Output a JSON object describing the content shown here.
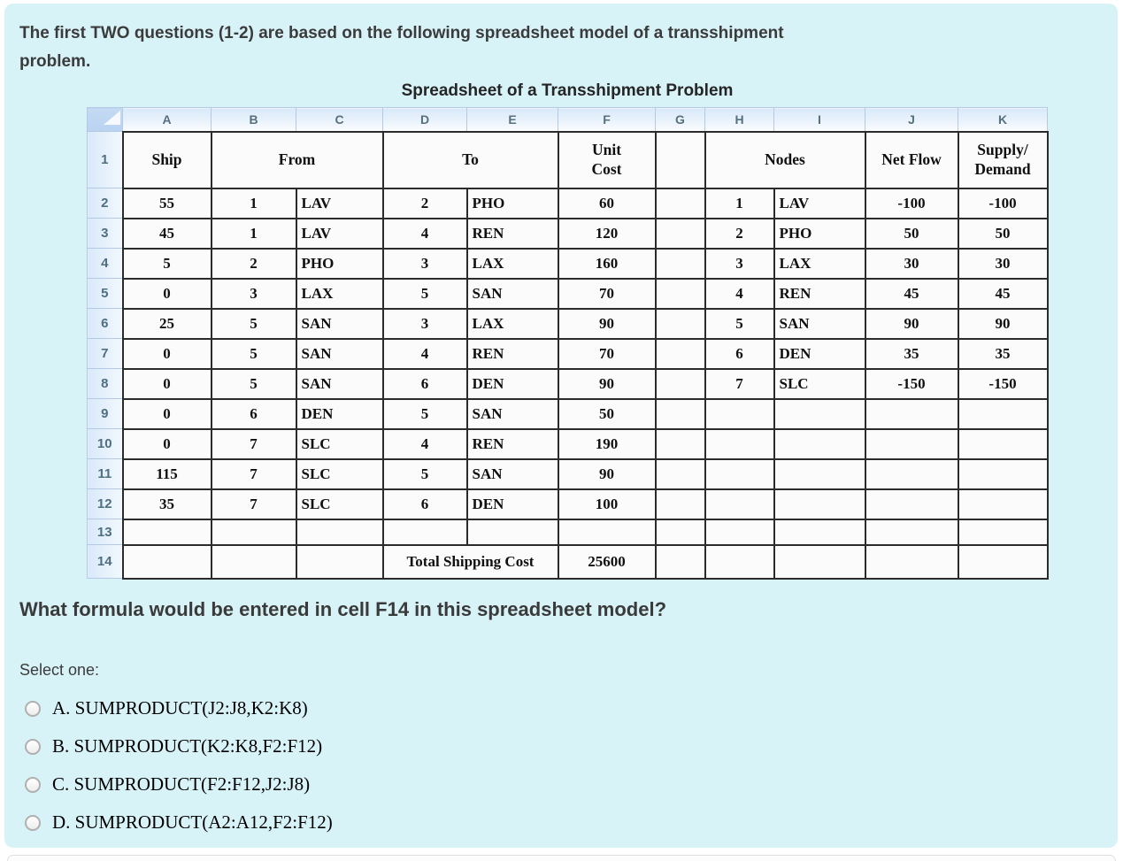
{
  "page": {
    "instruction_lines": [
      "The first TWO questions (1-2) are based on the following spreadsheet model of a transshipment",
      "problem."
    ],
    "question": "What formula would be entered in cell F14 in this spreadsheet model?",
    "select_label": "Select one:"
  },
  "options": [
    {
      "label": "A. SUMPRODUCT(J2:J8,K2:K8)"
    },
    {
      "label": "B. SUMPRODUCT(K2:K8,F2:F12)"
    },
    {
      "label": "C. SUMPRODUCT(F2:F12,J2:J8)"
    },
    {
      "label": "D. SUMPRODUCT(A2:A12,F2:F12)"
    }
  ],
  "spreadsheet": {
    "title": "Spreadsheet of a Transshipment Problem",
    "column_letters": [
      "A",
      "B",
      "C",
      "D",
      "E",
      "F",
      "G",
      "H",
      "I",
      "J",
      "K"
    ],
    "header_row_number": "1",
    "header_cells": [
      {
        "text": "Ship",
        "span": 1
      },
      {
        "text": "From",
        "span": 2
      },
      {
        "text": "To",
        "span": 2
      },
      {
        "text": "Unit\nCost",
        "span": 1
      },
      {
        "text": "",
        "span": 1
      },
      {
        "text": "Nodes",
        "span": 2
      },
      {
        "text": "Net Flow",
        "span": 1
      },
      {
        "text": "Supply/\nDemand",
        "span": 1
      }
    ],
    "data_rows": [
      {
        "num": "2",
        "cells": [
          "55",
          "1",
          "LAV",
          "2",
          "PHO",
          "60",
          "",
          "1",
          "LAV",
          "-100",
          "-100"
        ]
      },
      {
        "num": "3",
        "cells": [
          "45",
          "1",
          "LAV",
          "4",
          "REN",
          "120",
          "",
          "2",
          "PHO",
          "50",
          "50"
        ]
      },
      {
        "num": "4",
        "cells": [
          "5",
          "2",
          "PHO",
          "3",
          "LAX",
          "160",
          "",
          "3",
          "LAX",
          "30",
          "30"
        ]
      },
      {
        "num": "5",
        "cells": [
          "0",
          "3",
          "LAX",
          "5",
          "SAN",
          "70",
          "",
          "4",
          "REN",
          "45",
          "45"
        ]
      },
      {
        "num": "6",
        "cells": [
          "25",
          "5",
          "SAN",
          "3",
          "LAX",
          "90",
          "",
          "5",
          "SAN",
          "90",
          "90"
        ]
      },
      {
        "num": "7",
        "cells": [
          "0",
          "5",
          "SAN",
          "4",
          "REN",
          "70",
          "",
          "6",
          "DEN",
          "35",
          "35"
        ]
      },
      {
        "num": "8",
        "cells": [
          "0",
          "5",
          "SAN",
          "6",
          "DEN",
          "90",
          "",
          "7",
          "SLC",
          "-150",
          "-150"
        ]
      },
      {
        "num": "9",
        "cells": [
          "0",
          "6",
          "DEN",
          "5",
          "SAN",
          "50",
          "",
          "",
          "",
          "",
          ""
        ]
      },
      {
        "num": "10",
        "cells": [
          "0",
          "7",
          "SLC",
          "4",
          "REN",
          "190",
          "",
          "",
          "",
          "",
          ""
        ]
      },
      {
        "num": "11",
        "cells": [
          "115",
          "7",
          "SLC",
          "5",
          "SAN",
          "90",
          "",
          "",
          "",
          "",
          ""
        ]
      },
      {
        "num": "12",
        "cells": [
          "35",
          "7",
          "SLC",
          "6",
          "DEN",
          "100",
          "",
          "",
          "",
          "",
          ""
        ]
      },
      {
        "num": "13",
        "cells": [
          "",
          "",
          "",
          "",
          "",
          "",
          "",
          "",
          "",
          "",
          ""
        ]
      }
    ],
    "total_row": {
      "num": "14",
      "label": "Total Shipping Cost",
      "value": "25600"
    }
  },
  "colors": {
    "panel_background": "#d8f3f8",
    "table_grid": "#2b2b2b",
    "header_blue_border": "#b4c9e4",
    "header_blue_fill": "#d9e9f9",
    "corner_fill": "#b9d3f1",
    "heading_text": "#3b3b3b",
    "radio_border": "#b0b0b0"
  }
}
